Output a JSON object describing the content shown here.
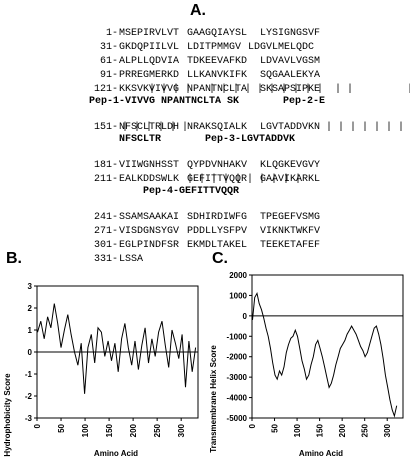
{
  "panels": {
    "a": "A.",
    "b": "B.",
    "c": "C."
  },
  "sequence": {
    "rows": [
      {
        "n": "1-",
        "b": [
          "MSEPIRVLVT",
          "GAAGQIAYSL",
          "LYSIGNGSVF"
        ]
      },
      {
        "n": "31-",
        "b": [
          "GKDQPIILVL",
          "LDITPMMGV",
          "LDGVLMELQDC"
        ]
      },
      {
        "n": "61-",
        "b": [
          "ALPLLQDVIA",
          "TDKEEVAFKD",
          "LDVAVLVGSM"
        ]
      },
      {
        "n": "91-",
        "b": [
          "PRREGMERKD",
          "LLKANVKIFK",
          "SQGAALEKYA"
        ]
      },
      {
        "n": "121-",
        "b": [
          "KKSVKVIVVG",
          "NPANTNCLTA",
          "SKSAPSIPKE"
        ]
      },
      {
        "n": "151-",
        "b": [
          "NFSCLTRLDH",
          "NRAKSQIALK",
          "LGVTADDVKN"
        ]
      },
      {
        "n": "181-",
        "b": [
          "VIIWGNHSST",
          "QYPDVNHAKV",
          "KLQGKEVGVY"
        ]
      },
      {
        "n": "211-",
        "b": [
          "EALKDDSWLK",
          "GEFITTVQQR",
          "GAAVIKARKL"
        ]
      },
      {
        "n": "241-",
        "b": [
          "SSAMSAAKAI",
          "SDHIRDIWFG",
          "TPEGEFVSMG"
        ]
      },
      {
        "n": "271-",
        "b": [
          "VISDGNSYGV",
          "PDDLLYSFPV",
          "VIKNKTWKFV"
        ]
      },
      {
        "n": "301-",
        "b": [
          "EGLPINDFSR",
          "EKMDLTAKEL",
          "TEEKETAFEF"
        ]
      },
      {
        "n": "331-",
        "b": [
          "LSSA"
        ]
      }
    ],
    "peptides": {
      "pep1": "Pep-1-VIVVG NPANTNCLTA SK",
      "pep2": "Pep-2-E",
      "pep2b": "NFSCLTR",
      "pep3": "Pep-3-LGVTADDVK",
      "pep4": "Pep-4-GEFITTVQQR"
    }
  },
  "chart_data": [
    {
      "type": "line",
      "xlabel": "Amino Acid",
      "ylabel": "Hydrophobicity Score",
      "xlim": [
        0,
        335
      ],
      "ylim": [
        -3,
        3
      ],
      "xticks": [
        "0",
        "50",
        "100",
        "150",
        "200",
        "250",
        "300"
      ],
      "yticks": [
        "3",
        "2",
        "1",
        "0",
        "-1",
        "-2",
        "-3"
      ],
      "series": [
        {
          "x": [
            1,
            8,
            15,
            22,
            29,
            36,
            43,
            50,
            57,
            64,
            71,
            78,
            85,
            92,
            99,
            106,
            113,
            120,
            127,
            134,
            141,
            148,
            155,
            162,
            169,
            176,
            183,
            190,
            197,
            204,
            211,
            218,
            225,
            232,
            239,
            246,
            253,
            260,
            267,
            274,
            281,
            288,
            295,
            302,
            309,
            316,
            323,
            330
          ],
          "y": [
            0.9,
            1.4,
            0.6,
            1.6,
            1.1,
            2.2,
            1.3,
            0.2,
            1.0,
            1.7,
            0.8,
            0.0,
            -0.6,
            0.4,
            -1.9,
            0.2,
            0.8,
            -0.5,
            1.1,
            0.9,
            -0.2,
            0.5,
            -0.4,
            0.4,
            -0.9,
            0.6,
            1.3,
            0.2,
            -0.6,
            0.5,
            -0.8,
            0.3,
            1.1,
            -0.5,
            0.6,
            -0.2,
            0.9,
            1.4,
            0.3,
            -0.7,
            1.0,
            0.4,
            -0.3,
            0.8,
            -1.6,
            0.5,
            -0.9,
            0.2
          ]
        }
      ]
    },
    {
      "type": "line",
      "xlabel": "Amino Acid",
      "ylabel": "Transmembrane Helix Score",
      "xlim": [
        0,
        335
      ],
      "ylim": [
        -5000,
        2000
      ],
      "xticks": [
        "0",
        "50",
        "100",
        "150",
        "200",
        "250",
        "300"
      ],
      "yticks": [
        "2000",
        "1000",
        "0",
        "-1000",
        "-2000",
        "-3000",
        "-4000",
        "-5000"
      ],
      "series": [
        {
          "x": [
            1,
            6,
            11,
            16,
            21,
            26,
            31,
            36,
            41,
            46,
            51,
            56,
            61,
            66,
            71,
            76,
            81,
            86,
            91,
            96,
            101,
            106,
            111,
            116,
            121,
            126,
            131,
            136,
            141,
            146,
            151,
            156,
            161,
            166,
            171,
            176,
            181,
            186,
            191,
            196,
            201,
            206,
            211,
            216,
            221,
            226,
            231,
            236,
            241,
            246,
            251,
            256,
            261,
            266,
            271,
            276,
            281,
            286,
            291,
            296,
            301,
            306,
            311,
            316,
            321
          ],
          "y": [
            -200,
            900,
            1100,
            600,
            300,
            -100,
            -600,
            -1000,
            -1600,
            -2300,
            -2900,
            -3100,
            -2700,
            -2900,
            -2500,
            -1800,
            -1400,
            -1100,
            -1000,
            -700,
            -1000,
            -1600,
            -2200,
            -2600,
            -3100,
            -2900,
            -2400,
            -2000,
            -1400,
            -1200,
            -1600,
            -2000,
            -2500,
            -3000,
            -3500,
            -3300,
            -2900,
            -2400,
            -2000,
            -1600,
            -1400,
            -1200,
            -900,
            -700,
            -500,
            -700,
            -900,
            -1200,
            -1500,
            -1700,
            -2000,
            -1800,
            -1400,
            -1000,
            -600,
            -500,
            -900,
            -1400,
            -2100,
            -2900,
            -3500,
            -4100,
            -4600,
            -4900,
            -4400
          ]
        }
      ]
    }
  ]
}
